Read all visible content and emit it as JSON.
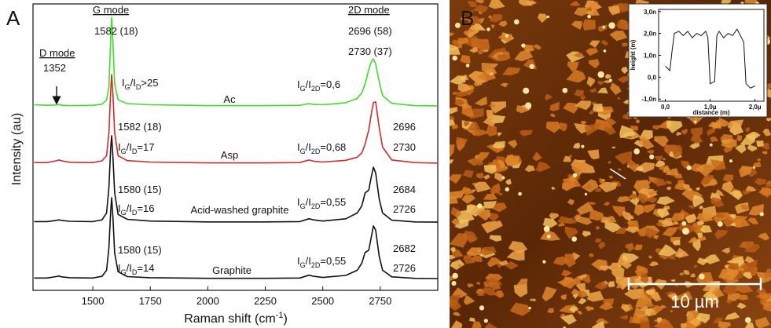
{
  "panel_labels": [
    "A",
    "B"
  ],
  "chart_data": [
    {
      "type": "line",
      "x_label": [
        "Raman shift (cm",
        "-1",
        ")"
      ],
      "y_label": "Intensity (au)",
      "xlim": [
        1240,
        3000
      ],
      "ylim": [
        0,
        100
      ],
      "xticks": [
        1500,
        1750,
        2000,
        2250,
        2500,
        2750
      ],
      "x": [
        1245,
        1300,
        1340,
        1352,
        1365,
        1400,
        1500,
        1540,
        1560,
        1570,
        1578,
        1582,
        1588,
        1595,
        1610,
        1650,
        1750,
        2000,
        2250,
        2400,
        2440,
        2460,
        2500,
        2600,
        2650,
        2670,
        2684,
        2700,
        2712,
        2720,
        2730,
        2745,
        2760,
        2800,
        2900,
        3000
      ],
      "series": [
        {
          "name": "Ac",
          "color": "#3fdc2c",
          "values": [
            64.8,
            64.6,
            64.7,
            64.9,
            64.6,
            64.5,
            64.6,
            65,
            66.5,
            71,
            88,
            95.3,
            86,
            72,
            66.5,
            65.2,
            64.8,
            64.5,
            64.5,
            64.6,
            65.2,
            64.9,
            64.8,
            65.5,
            67,
            69,
            72,
            77,
            80,
            80.8,
            79,
            73,
            68,
            65.3,
            64.5,
            64.4
          ]
        },
        {
          "name": "Asp",
          "color": "#d42a2a",
          "values": [
            44.6,
            44.6,
            45.2,
            45.5,
            45.2,
            44.7,
            44.6,
            45.2,
            47,
            55,
            70,
            75.3,
            68,
            55,
            47,
            45.3,
            44.8,
            44.5,
            44.5,
            44.6,
            45.5,
            45.1,
            44.8,
            45.4,
            46.5,
            48,
            51,
            56,
            62,
            65.5,
            65.8,
            57,
            50,
            45.5,
            44.6,
            44.4
          ]
        },
        {
          "name": "Acid-washed graphite",
          "color": "#111111",
          "values": [
            24,
            24,
            24.4,
            24.6,
            24.4,
            24.1,
            24,
            24.6,
            27,
            36,
            50,
            54,
            46,
            34,
            26.5,
            24.8,
            24.2,
            23.9,
            23.9,
            24,
            25,
            24.6,
            24.2,
            25,
            27,
            29.5,
            34,
            35,
            40,
            43,
            41,
            32,
            27,
            24.5,
            23.9,
            23.8
          ]
        },
        {
          "name": "Graphite",
          "color": "#111111",
          "values": [
            4.3,
            4.3,
            4.8,
            5,
            4.7,
            4.4,
            4.3,
            4.9,
            7,
            15,
            28,
            32.3,
            25,
            13,
            6.5,
            4.8,
            4.4,
            4.2,
            4.2,
            4.3,
            5.3,
            4.9,
            4.5,
            5.2,
            7,
            9.5,
            13.2,
            14,
            19,
            22.5,
            21,
            12,
            7,
            4.7,
            4.2,
            4.1
          ]
        }
      ],
      "annotations": [
        [
          "G mode"
        ],
        [
          "1582 (18)"
        ],
        [
          "2D mode"
        ],
        [
          "2696 (58)"
        ],
        [
          "2730 (37)"
        ],
        [
          "D mode"
        ],
        [
          "1352"
        ],
        [
          "I",
          "G",
          "/I",
          "D",
          ">25"
        ],
        [
          "I",
          "G",
          "/I",
          "2D",
          "=0,6"
        ],
        [
          "1582 (18)"
        ],
        [
          "I",
          "G",
          "/I",
          "D",
          "=17"
        ],
        [
          "I",
          "G",
          "/I",
          "2D",
          "=0,68"
        ],
        [
          "2696"
        ],
        [
          "2730"
        ],
        [
          "1580 (15)"
        ],
        [
          "I",
          "G",
          "/I",
          "D",
          "=16"
        ],
        [
          "I",
          "G",
          "/I",
          "2D",
          "=0,55"
        ],
        [
          "2684"
        ],
        [
          "2726"
        ],
        [
          "1580 (15)"
        ],
        [
          "I",
          "G",
          "/I",
          "D",
          "=14"
        ],
        [
          "I",
          "G",
          "/I",
          "2D",
          "=0,55"
        ],
        [
          "2682"
        ],
        [
          "2726"
        ]
      ]
    },
    {
      "type": "line",
      "x_label": "distance (m)",
      "y_label": "height (m)",
      "xlim": [
        -1.5e-07,
        2.2e-06
      ],
      "ylim": [
        -1.1e-09,
        3.1e-09
      ],
      "xticks": [
        {
          "value": 0,
          "label": "0,0"
        },
        {
          "value": 1e-06,
          "label": "1,0µ"
        },
        {
          "value": 2e-06,
          "label": "2,0µ"
        }
      ],
      "yticks": [
        {
          "value": -1e-09,
          "label": "-1,0n"
        },
        {
          "value": 0,
          "label": "0,0"
        },
        {
          "value": 1e-09,
          "label": "1,0n"
        },
        {
          "value": 2e-09,
          "label": "2,0n"
        },
        {
          "value": 3e-09,
          "label": "3,0n"
        }
      ],
      "x": [
        0,
        1e-07,
        1.5e-07,
        2e-07,
        3e-07,
        4e-07,
        5e-07,
        6e-07,
        7e-07,
        8e-07,
        9e-07,
        9.5e-07,
        1e-06,
        1.1e-06,
        1.15e-06,
        1.2e-06,
        1.3e-06,
        1.4e-06,
        1.5e-06,
        1.6e-06,
        1.7e-06,
        1.75e-06,
        1.8e-06,
        1.9e-06,
        2e-06
      ],
      "values": [
        5e-10,
        3e-10,
        1.2e-09,
        2e-09,
        2.1e-09,
        1.9e-09,
        2.1e-09,
        1.8e-09,
        2e-09,
        1.9e-09,
        2.1e-09,
        1.8e-09,
        -3e-10,
        -2e-10,
        1.9e-09,
        2.1e-09,
        1.8e-09,
        2e-09,
        1.9e-09,
        2.2e-09,
        1.8e-09,
        1.6e-09,
        -3e-10,
        -5e-10,
        -4e-10
      ],
      "color": "#111111"
    }
  ],
  "image": {
    "scale_bar": "10 µm"
  }
}
